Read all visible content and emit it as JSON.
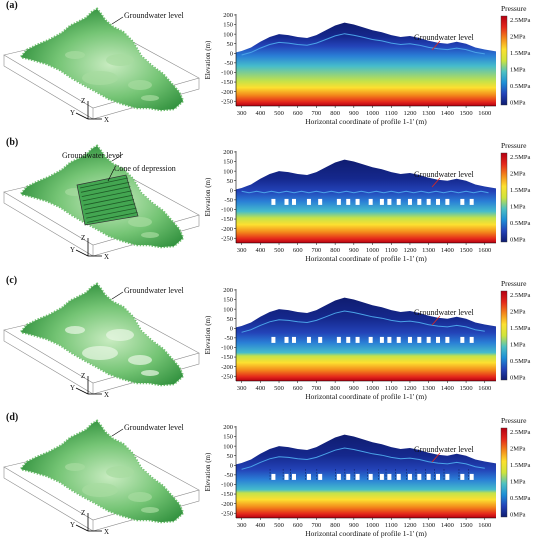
{
  "panels": [
    {
      "id": "a",
      "letter": "(a)",
      "map_labels": [
        "Groundwater level"
      ],
      "profile_label": "Groundwater level",
      "well_markers": false,
      "flat_water_table": false,
      "cone_of_depression": false,
      "dashed_wells": false
    },
    {
      "id": "b",
      "letter": "(b)",
      "map_labels": [
        "Groundwater level",
        "Cone of depression"
      ],
      "profile_label": "Groundwater level",
      "well_markers": true,
      "flat_water_table": true,
      "cone_of_depression": true,
      "dashed_wells": false
    },
    {
      "id": "c",
      "letter": "(c)",
      "map_labels": [
        "Groundwater level"
      ],
      "profile_label": "Groundwater level",
      "well_markers": true,
      "flat_water_table": false,
      "cone_of_depression": false,
      "dashed_wells": false
    },
    {
      "id": "d",
      "letter": "(d)",
      "map_labels": [
        "Groundwater level"
      ],
      "profile_label": "Groundwater level",
      "well_markers": true,
      "flat_water_table": false,
      "cone_of_depression": false,
      "dashed_wells": true
    }
  ],
  "axes3d": {
    "x": "X",
    "y": "Y",
    "z": "Z"
  },
  "chart_data": {
    "type": "heatmap",
    "xlabel": "Horizontal coordinate of profile 1-1' (m)",
    "ylabel": "Elevation (m)",
    "xlim": [
      270,
      1660
    ],
    "ylim": [
      -275,
      205
    ],
    "x_ticks": [
      300,
      400,
      500,
      600,
      700,
      800,
      900,
      1000,
      1100,
      1200,
      1300,
      1400,
      1500,
      1600
    ],
    "y_ticks": [
      200,
      150,
      100,
      50,
      0,
      -50,
      -100,
      -150,
      -200,
      -250
    ],
    "colorbar": {
      "title": "Pressure",
      "labels": [
        "2.5MPa",
        "2MPa",
        "1.5MPa",
        "1MPa",
        "0.5MPa",
        "0MPa"
      ],
      "colors": [
        "#b40012",
        "#e4281b",
        "#f3881b",
        "#fde030",
        "#cfe43c",
        "#4fc1c2",
        "#1e8fd6",
        "#2343b8",
        "#0f1c70"
      ]
    },
    "surface_profile": {
      "x": [
        270,
        300,
        350,
        400,
        450,
        500,
        550,
        600,
        650,
        700,
        750,
        800,
        850,
        900,
        950,
        1000,
        1050,
        1100,
        1150,
        1200,
        1250,
        1300,
        1350,
        1400,
        1450,
        1500,
        1550,
        1600,
        1660
      ],
      "elevation": [
        5,
        12,
        30,
        60,
        85,
        100,
        95,
        85,
        80,
        95,
        120,
        145,
        160,
        150,
        135,
        120,
        110,
        95,
        85,
        90,
        80,
        65,
        55,
        50,
        60,
        50,
        30,
        20,
        10
      ]
    },
    "wells_x": [
      470,
      540,
      580,
      660,
      720,
      820,
      870,
      920,
      990,
      1050,
      1090,
      1140,
      1200,
      1250,
      1300,
      1350,
      1400,
      1480,
      1530
    ]
  }
}
